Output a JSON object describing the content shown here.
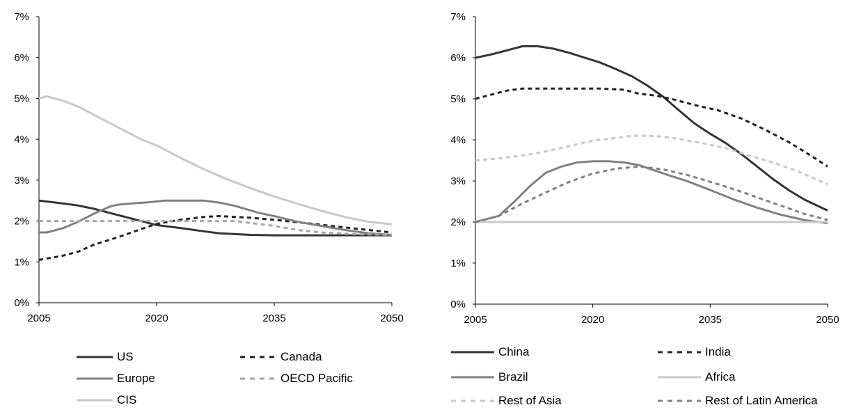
{
  "chart_data": [
    {
      "type": "line",
      "title": "",
      "xlabel": "",
      "ylabel": "",
      "xlim": [
        2005,
        2050
      ],
      "ylim": [
        0,
        7
      ],
      "x_ticks": [
        "2005",
        "2020",
        "2035",
        "2050"
      ],
      "y_ticks": [
        "0%",
        "1%",
        "2%",
        "3%",
        "4%",
        "5%",
        "6%",
        "7%"
      ],
      "grid": false,
      "legend_position": "bottom",
      "series": [
        {
          "name": "US",
          "color": "#333333",
          "dash": "solid",
          "x": [
            2005,
            2008,
            2010,
            2012,
            2015,
            2018,
            2020,
            2023,
            2026,
            2028,
            2030,
            2032,
            2035,
            2040,
            2045,
            2050
          ],
          "y": [
            2.5,
            2.43,
            2.38,
            2.3,
            2.15,
            2.0,
            1.9,
            1.83,
            1.75,
            1.7,
            1.68,
            1.66,
            1.65,
            1.65,
            1.65,
            1.65
          ]
        },
        {
          "name": "Canada",
          "color": "#222222",
          "dash": "dashed",
          "x": [
            2005,
            2008,
            2010,
            2012,
            2015,
            2018,
            2020,
            2023,
            2026,
            2028,
            2030,
            2032,
            2035,
            2040,
            2045,
            2050
          ],
          "y": [
            1.05,
            1.15,
            1.25,
            1.42,
            1.6,
            1.8,
            1.93,
            2.03,
            2.1,
            2.12,
            2.1,
            2.08,
            2.03,
            1.93,
            1.82,
            1.72
          ]
        },
        {
          "name": "Europe",
          "color": "#808080",
          "dash": "solid",
          "x": [
            2005,
            2006,
            2008,
            2010,
            2012,
            2014,
            2015,
            2017,
            2019,
            2021,
            2024,
            2026,
            2028,
            2030,
            2033,
            2035,
            2038,
            2041,
            2044,
            2047,
            2050
          ],
          "y": [
            1.72,
            1.72,
            1.82,
            1.98,
            2.18,
            2.35,
            2.4,
            2.43,
            2.46,
            2.5,
            2.5,
            2.5,
            2.45,
            2.37,
            2.2,
            2.12,
            1.98,
            1.88,
            1.78,
            1.7,
            1.66
          ]
        },
        {
          "name": "OECD Pacific",
          "color": "#a6a6a6",
          "dash": "dashed",
          "x": [
            2005,
            2010,
            2015,
            2020,
            2025,
            2030,
            2035,
            2038,
            2041,
            2045,
            2050
          ],
          "y": [
            2.0,
            2.0,
            2.0,
            2.0,
            2.0,
            2.0,
            1.88,
            1.78,
            1.72,
            1.68,
            1.66
          ]
        },
        {
          "name": "CIS",
          "color": "#c8c8c8",
          "dash": "solid",
          "x": [
            2005,
            2006,
            2008,
            2010,
            2012,
            2014,
            2016,
            2018,
            2020,
            2023,
            2026,
            2029,
            2032,
            2035,
            2038,
            2041,
            2044,
            2047,
            2050
          ],
          "y": [
            5.0,
            5.05,
            4.95,
            4.8,
            4.6,
            4.4,
            4.2,
            4.0,
            3.85,
            3.55,
            3.27,
            3.02,
            2.8,
            2.6,
            2.42,
            2.25,
            2.1,
            1.98,
            1.92
          ]
        }
      ]
    },
    {
      "type": "line",
      "title": "",
      "xlabel": "",
      "ylabel": "",
      "xlim": [
        2005,
        2050
      ],
      "ylim": [
        0,
        7
      ],
      "x_ticks": [
        "2005",
        "2020",
        "2035",
        "2050"
      ],
      "y_ticks": [
        "0%",
        "1%",
        "2%",
        "3%",
        "4%",
        "5%",
        "6%",
        "7%"
      ],
      "grid": false,
      "legend_position": "bottom",
      "series": [
        {
          "name": "China",
          "color": "#333333",
          "dash": "solid",
          "x": [
            2005,
            2007,
            2009,
            2011,
            2013,
            2015,
            2017,
            2019,
            2021,
            2023,
            2025,
            2027,
            2029,
            2031,
            2033,
            2035,
            2037,
            2039,
            2041,
            2043,
            2045,
            2047,
            2050
          ],
          "y": [
            6.0,
            6.08,
            6.18,
            6.28,
            6.28,
            6.22,
            6.12,
            6.0,
            5.88,
            5.72,
            5.55,
            5.32,
            5.05,
            4.72,
            4.4,
            4.15,
            3.92,
            3.65,
            3.35,
            3.05,
            2.78,
            2.55,
            2.28
          ]
        },
        {
          "name": "India",
          "color": "#222222",
          "dash": "dashed",
          "x": [
            2005,
            2007,
            2009,
            2011,
            2013,
            2015,
            2018,
            2021,
            2024,
            2026,
            2028,
            2030,
            2033,
            2036,
            2039,
            2042,
            2045,
            2048,
            2050
          ],
          "y": [
            5.0,
            5.1,
            5.2,
            5.25,
            5.25,
            5.25,
            5.25,
            5.25,
            5.22,
            5.12,
            5.08,
            5.0,
            4.85,
            4.72,
            4.52,
            4.25,
            3.95,
            3.6,
            3.35
          ]
        },
        {
          "name": "Brazil",
          "color": "#808080",
          "dash": "solid",
          "x": [
            2005,
            2006,
            2008,
            2010,
            2012,
            2014,
            2016,
            2018,
            2020,
            2022,
            2024,
            2026,
            2028,
            2030,
            2032,
            2035,
            2038,
            2041,
            2044,
            2047,
            2050
          ],
          "y": [
            2.0,
            2.05,
            2.15,
            2.5,
            2.88,
            3.2,
            3.35,
            3.45,
            3.48,
            3.48,
            3.45,
            3.38,
            3.25,
            3.12,
            3.0,
            2.78,
            2.55,
            2.35,
            2.18,
            2.05,
            1.97
          ]
        },
        {
          "name": "Africa",
          "color": "#c8c8c8",
          "dash": "solid",
          "x": [
            2005,
            2050
          ],
          "y": [
            2.0,
            2.0
          ]
        },
        {
          "name": "Rest of Asia",
          "color": "#c8c8c8",
          "dash": "dashed",
          "x": [
            2005,
            2008,
            2011,
            2014,
            2017,
            2020,
            2023,
            2025,
            2027,
            2029,
            2031,
            2034,
            2037,
            2040,
            2043,
            2046,
            2050
          ],
          "y": [
            3.5,
            3.55,
            3.62,
            3.72,
            3.85,
            3.98,
            4.05,
            4.1,
            4.1,
            4.08,
            4.02,
            3.92,
            3.8,
            3.62,
            3.45,
            3.25,
            2.92
          ]
        },
        {
          "name": "Rest of Latin America",
          "color": "#808080",
          "dash": "dashed",
          "x": [
            2005,
            2008,
            2011,
            2014,
            2017,
            2020,
            2023,
            2026,
            2029,
            2032,
            2035,
            2038,
            2041,
            2044,
            2047,
            2050
          ],
          "y": [
            2.0,
            2.15,
            2.45,
            2.72,
            2.98,
            3.18,
            3.3,
            3.35,
            3.28,
            3.15,
            2.98,
            2.8,
            2.6,
            2.4,
            2.2,
            2.05
          ]
        }
      ]
    }
  ]
}
